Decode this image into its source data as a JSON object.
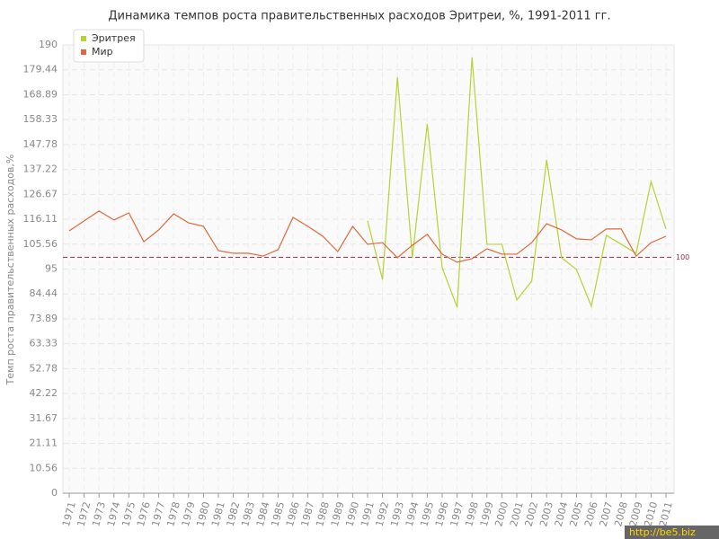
{
  "chart_data": {
    "type": "line",
    "title": "Динамика темпов роста правительственных расходов Эритреи, %, 1991-2011 гг.",
    "y_label": "Темп роста правительственных расходов,%",
    "categories": [
      "1971",
      "1972",
      "1973",
      "1974",
      "1975",
      "1976",
      "1977",
      "1978",
      "1979",
      "1980",
      "1981",
      "1982",
      "1983",
      "1984",
      "1985",
      "1986",
      "1987",
      "1988",
      "1989",
      "1990",
      "1991",
      "1992",
      "1993",
      "1994",
      "1995",
      "1996",
      "1997",
      "1998",
      "1999",
      "2000",
      "2001",
      "2002",
      "2003",
      "2004",
      "2005",
      "2006",
      "2007",
      "2008",
      "2009",
      "2010",
      "2011"
    ],
    "series": [
      {
        "name": "Эритрея",
        "color": "#b5d334",
        "values": [
          null,
          null,
          null,
          null,
          null,
          null,
          null,
          null,
          null,
          null,
          null,
          null,
          null,
          null,
          null,
          null,
          null,
          null,
          null,
          null,
          115.4,
          90.6,
          176.3,
          99.8,
          156.5,
          95.6,
          78.8,
          184.7,
          105.5,
          105.5,
          81.9,
          89.9,
          141.3,
          99.8,
          94.8,
          79.2,
          109.3,
          105.5,
          101.7,
          132.1,
          112.0
        ]
      },
      {
        "name": "Мир",
        "color": "#e0683a",
        "values": [
          111.2,
          115.4,
          119.6,
          115.8,
          118.8,
          106.6,
          111.6,
          118.4,
          114.6,
          113.1,
          102.8,
          101.7,
          101.7,
          100.5,
          103.2,
          116.9,
          113.1,
          108.9,
          102.4,
          113.1,
          105.5,
          106.2,
          99.8,
          105.1,
          109.7,
          101.3,
          97.9,
          99.4,
          103.6,
          101.3,
          101.3,
          106.2,
          114.2,
          111.6,
          107.8,
          107.4,
          112.0,
          112.0,
          100.5,
          106.2,
          108.9
        ]
      }
    ],
    "ylim": [
      0,
      190
    ],
    "yticks": [
      0,
      10.56,
      21.11,
      31.67,
      42.22,
      52.78,
      63.33,
      73.89,
      84.44,
      95,
      105.56,
      116.11,
      126.67,
      137.22,
      147.78,
      158.33,
      168.89,
      179.44,
      190
    ],
    "grid": true,
    "reference_line": 100,
    "legend": "top-left",
    "watermark": "http://be5.biz"
  }
}
